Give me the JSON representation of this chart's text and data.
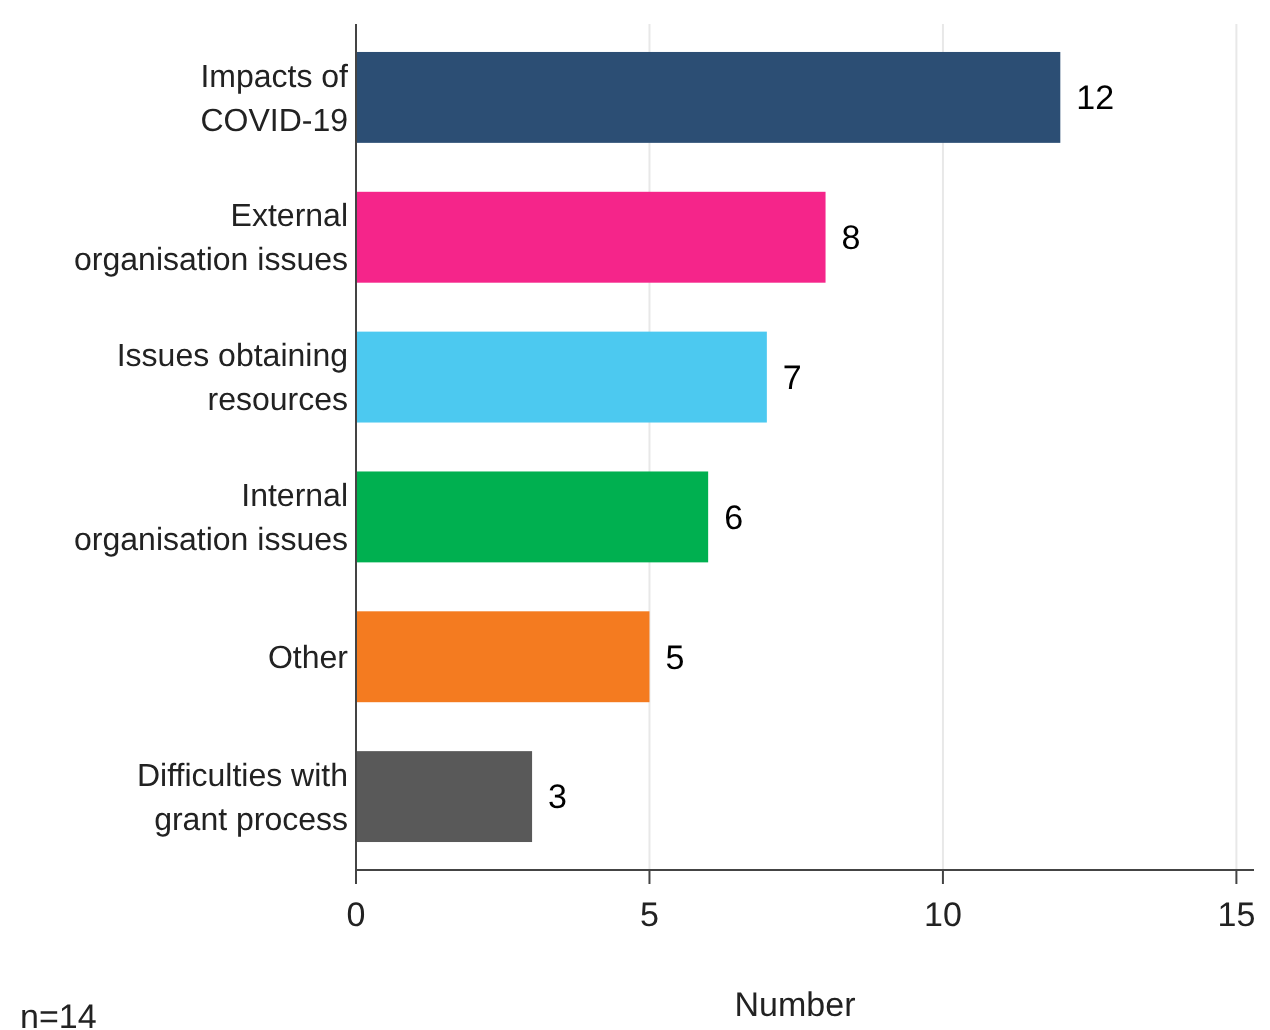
{
  "chart_data": {
    "type": "bar",
    "orientation": "horizontal",
    "xlabel": "Number",
    "categories": [
      "Impacts of\nCOVID-19",
      "External\norganisation issues",
      "Issues obtaining\nresources",
      "Internal\norganisation issues",
      "Other",
      "Difficulties with\ngrant process"
    ],
    "values": [
      12,
      8,
      7,
      6,
      5,
      3
    ],
    "colors": [
      "#2c4e74",
      "#f5258a",
      "#4cc9f0",
      "#00b050",
      "#f47b20",
      "#595959"
    ],
    "xlim": [
      0,
      15.3
    ],
    "xticks": [
      0,
      5,
      10,
      15
    ],
    "grid": "x",
    "data_labels": true,
    "annotations": [
      "n=14"
    ]
  }
}
